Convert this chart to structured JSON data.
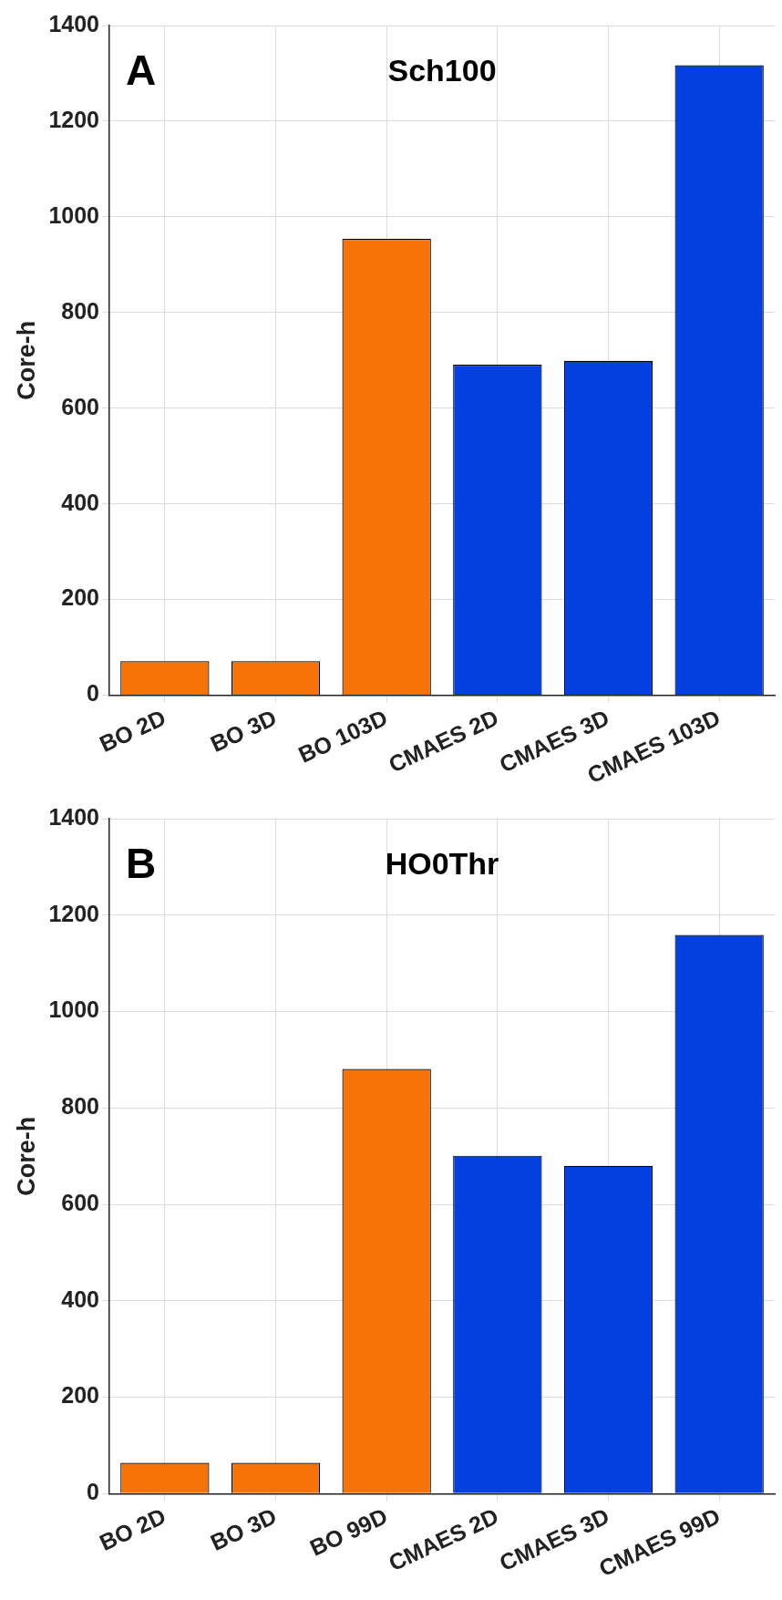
{
  "chart_data": [
    {
      "type": "bar",
      "title": "Sch100",
      "ylabel": "Core-h",
      "annotations": [
        "A"
      ],
      "categories": [
        "BO 2D",
        "BO 3D",
        "BO 103D",
        "CMAES 2D",
        "CMAES 3D",
        "CMAES 103D"
      ],
      "values": [
        71,
        71,
        954,
        691,
        699,
        1317
      ],
      "colors": [
        "#f77307",
        "#f77307",
        "#f77307",
        "#0340df",
        "#0340df",
        "#0340df"
      ],
      "ylim": [
        0,
        1400
      ],
      "yticks": [
        0,
        200,
        400,
        600,
        800,
        1000,
        1200,
        1400
      ],
      "grid": true,
      "legend": false
    },
    {
      "type": "bar",
      "title": "HO0Thr",
      "ylabel": "Core-h",
      "annotations": [
        "B"
      ],
      "categories": [
        "BO 2D",
        "BO 3D",
        "BO 99D",
        "CMAES 2D",
        "CMAES 3D",
        "CMAES 99D"
      ],
      "values": [
        64,
        64,
        881,
        701,
        680,
        1159
      ],
      "colors": [
        "#f77307",
        "#f77307",
        "#f77307",
        "#0340df",
        "#0340df",
        "#0340df"
      ],
      "ylim": [
        0,
        1400
      ],
      "yticks": [
        0,
        200,
        400,
        600,
        800,
        1000,
        1200,
        1400
      ],
      "grid": true,
      "legend": false
    }
  ]
}
